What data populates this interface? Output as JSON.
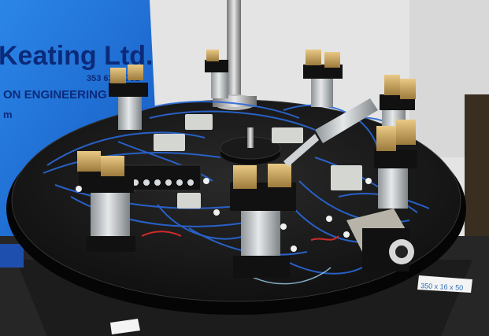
{
  "scene": {
    "banner": {
      "company": "Keating Ltd.",
      "subtitle": "ON ENGINEERING",
      "phone": "353 63 77751",
      "web": "m"
    },
    "label_tag": "350 x 16 x 50",
    "colors": {
      "banner_blue": "#1f6fd6",
      "plate_black": "#141414",
      "tube_blue": "#2a68d8",
      "brass": "#c9a25a",
      "wall": "#ececec"
    }
  }
}
